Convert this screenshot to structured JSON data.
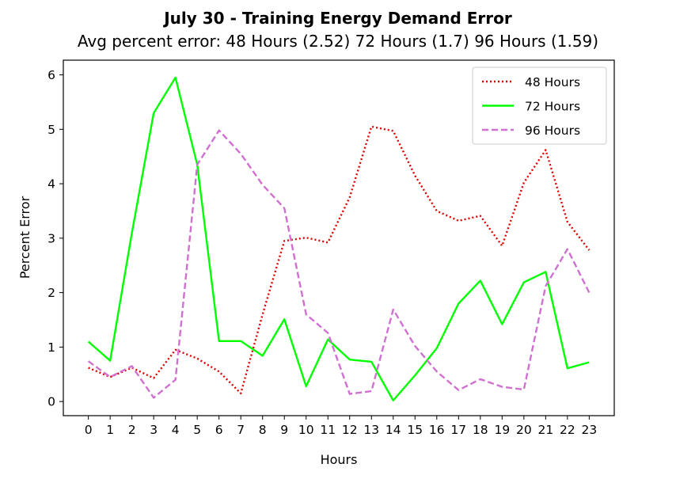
{
  "chart_data": {
    "type": "line",
    "title": "July 30 - Training Energy Demand Error",
    "subtitle": "Avg percent error: 48 Hours (2.52) 72 Hours (1.7) 96 Hours (1.59)",
    "xlabel": "Hours",
    "ylabel": "Percent Error",
    "x": [
      0,
      1,
      2,
      3,
      4,
      5,
      6,
      7,
      8,
      9,
      10,
      11,
      12,
      13,
      14,
      15,
      16,
      17,
      18,
      19,
      20,
      21,
      22,
      23
    ],
    "x_ticks": [
      "0",
      "1",
      "2",
      "3",
      "4",
      "5",
      "6",
      "7",
      "8",
      "9",
      "10",
      "11",
      "12",
      "13",
      "14",
      "15",
      "16",
      "17",
      "18",
      "19",
      "20",
      "21",
      "22",
      "23"
    ],
    "y_ticks": [
      "0",
      "1",
      "2",
      "3",
      "4",
      "5",
      "6"
    ],
    "xlim": [
      -1.15,
      24.15
    ],
    "ylim": [
      -0.26,
      6.27
    ],
    "grid": false,
    "legend_position": "top-right",
    "series": [
      {
        "name": "48 Hours",
        "color": "#e00000",
        "style": "dotted",
        "values": [
          0.62,
          0.45,
          0.62,
          0.43,
          0.95,
          0.79,
          0.55,
          0.15,
          1.6,
          2.95,
          3.01,
          2.92,
          3.75,
          5.05,
          4.97,
          4.15,
          3.5,
          3.32,
          3.41,
          2.86,
          4.02,
          4.62,
          3.3,
          2.78
        ]
      },
      {
        "name": "72 Hours",
        "color": "#00ff00",
        "style": "solid",
        "values": [
          1.1,
          0.75,
          3.1,
          5.3,
          5.95,
          4.35,
          1.11,
          1.11,
          0.84,
          1.51,
          0.28,
          1.14,
          0.77,
          0.73,
          0.02,
          0.48,
          0.98,
          1.8,
          2.22,
          1.42,
          2.19,
          2.38,
          0.61,
          0.72
        ]
      },
      {
        "name": "96 Hours",
        "color": "#d070d0",
        "style": "dashed",
        "values": [
          0.74,
          0.45,
          0.65,
          0.07,
          0.4,
          4.35,
          4.98,
          4.55,
          3.98,
          3.55,
          1.6,
          1.26,
          0.14,
          0.19,
          1.69,
          1.02,
          0.55,
          0.21,
          0.41,
          0.27,
          0.22,
          2.12,
          2.8,
          2.0
        ]
      }
    ]
  }
}
